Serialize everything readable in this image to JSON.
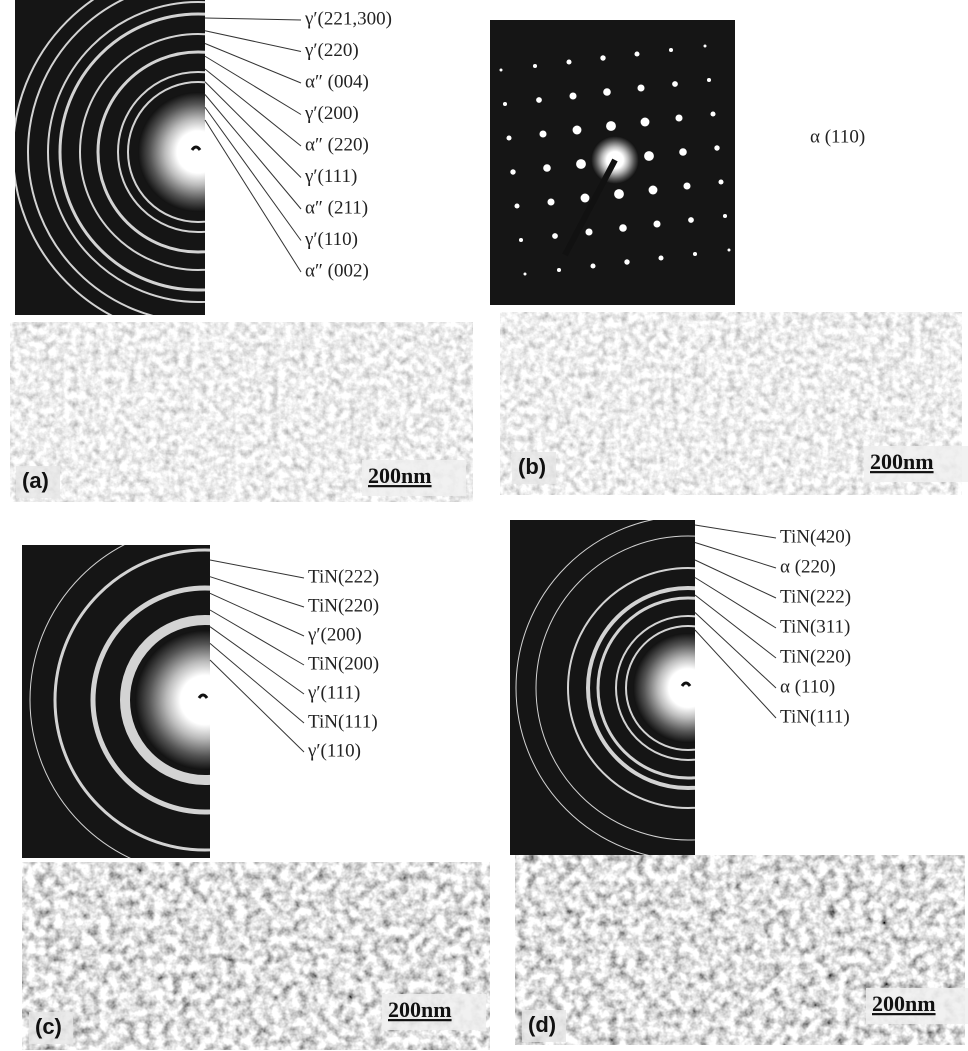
{
  "panels": [
    {
      "letter": "(a)",
      "scale_bar": "200nm",
      "reflections": [
        "γ′(221,300)",
        "γ′(220)",
        "α″ (004)",
        "γ′(200)",
        "α″ (220)",
        "γ′(111)",
        "α″ (211)",
        "γ′(110)",
        "α″ (002)"
      ]
    },
    {
      "letter": "(b)",
      "scale_bar": "200nm",
      "reflections": [
        "α (110)"
      ]
    },
    {
      "letter": "(c)",
      "scale_bar": "200nm",
      "reflections": [
        "TiN(222)",
        "TiN(220)",
        "γ′(200)",
        "TiN(200)",
        "γ′(111)",
        "TiN(111)",
        "γ′(110)"
      ]
    },
    {
      "letter": "(d)",
      "scale_bar": "200nm",
      "reflections": [
        "TiN(420)",
        "α (220)",
        "TiN(222)",
        "TiN(311)",
        "TiN(220)",
        "α (110)",
        "TiN(111)"
      ]
    }
  ]
}
